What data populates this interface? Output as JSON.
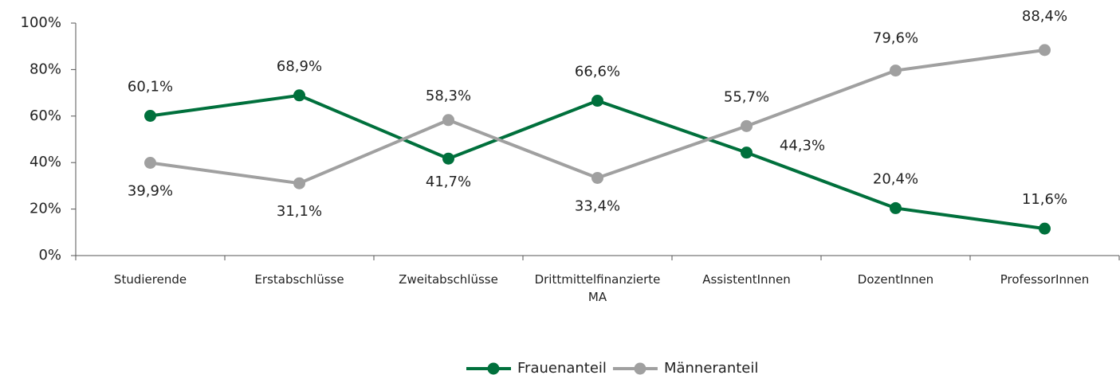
{
  "chart_data": {
    "type": "line",
    "categories": [
      "Studierende",
      "Erstabschlüsse",
      "Zweitabschlüsse",
      "Drittmittelfinanzierte MA",
      "AssistentInnen",
      "DozentInnen",
      "ProfessorInnen"
    ],
    "series": [
      {
        "name": "Frauenanteil",
        "color": "#00703c",
        "values": [
          60.1,
          68.9,
          41.7,
          66.6,
          44.3,
          20.4,
          11.6
        ],
        "value_labels": [
          "60,1%",
          "68,9%",
          "41,7%",
          "66,6%",
          "44,3%",
          "20,4%",
          "11,6%"
        ]
      },
      {
        "name": "Männeranteil",
        "color": "#a0a0a0",
        "values": [
          39.9,
          31.1,
          58.3,
          33.4,
          55.7,
          79.6,
          88.4
        ],
        "value_labels": [
          "39,9%",
          "31,1%",
          "58,3%",
          "33,4%",
          "55,7%",
          "79,6%",
          "88,4%"
        ]
      }
    ],
    "ylim": [
      0,
      100
    ],
    "yticks": [
      {
        "value": 0,
        "label": "0%"
      },
      {
        "value": 20,
        "label": "20%"
      },
      {
        "value": 40,
        "label": "40%"
      },
      {
        "value": 60,
        "label": "60%"
      },
      {
        "value": 80,
        "label": "80%"
      },
      {
        "value": 100,
        "label": "100%"
      }
    ],
    "legend": "bottom"
  }
}
